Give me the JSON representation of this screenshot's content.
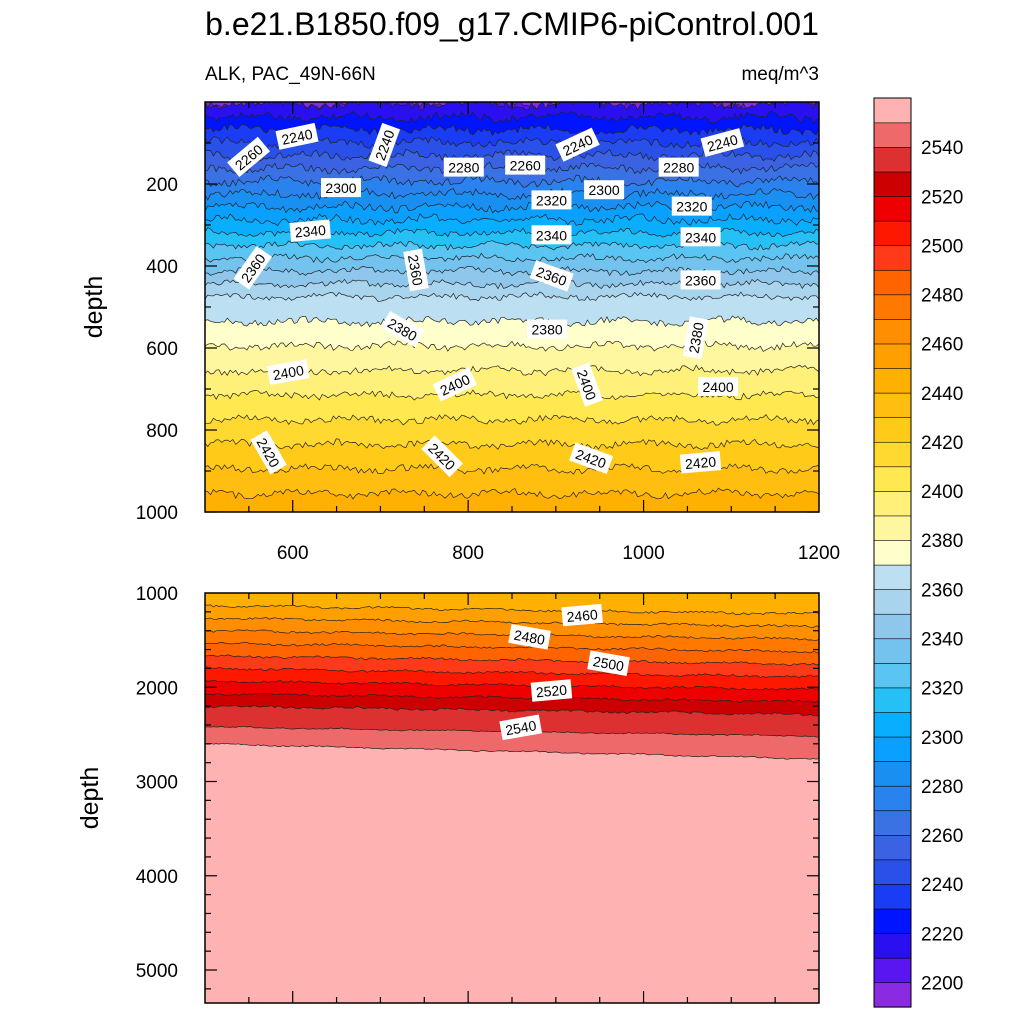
{
  "chart_data": {
    "type": "contour",
    "title": "b.e21.B1850.f09_g17.CMIP6-piControl.001",
    "subtitle_left": "ALK, PAC_49N-66N",
    "subtitle_right": "meq/m^3",
    "ylabel": "depth",
    "xlim": [
      500,
      1200
    ],
    "x_ticks": [
      "600",
      "800",
      "1000",
      "1200"
    ],
    "upper_panel": {
      "ylim": [
        0,
        1000
      ],
      "y_ticks": [
        "200",
        "400",
        "600",
        "800",
        "1000"
      ],
      "contour_labels": [
        {
          "text": "2240",
          "x": 605,
          "d": 85,
          "rot": -12
        },
        {
          "text": "2260",
          "x": 550,
          "d": 135,
          "rot": -40
        },
        {
          "text": "2240",
          "x": 705,
          "d": 105,
          "rot": -70
        },
        {
          "text": "2280",
          "x": 795,
          "d": 160,
          "rot": 0
        },
        {
          "text": "2260",
          "x": 865,
          "d": 155,
          "rot": 0
        },
        {
          "text": "2240",
          "x": 925,
          "d": 105,
          "rot": -25
        },
        {
          "text": "2280",
          "x": 1040,
          "d": 160,
          "rot": 0
        },
        {
          "text": "2240",
          "x": 1090,
          "d": 100,
          "rot": -15
        },
        {
          "text": "2300",
          "x": 655,
          "d": 210,
          "rot": 0
        },
        {
          "text": "2320",
          "x": 895,
          "d": 240,
          "rot": 0
        },
        {
          "text": "2300",
          "x": 955,
          "d": 215,
          "rot": 0
        },
        {
          "text": "2320",
          "x": 1055,
          "d": 255,
          "rot": 0
        },
        {
          "text": "2340",
          "x": 620,
          "d": 315,
          "rot": -5
        },
        {
          "text": "2340",
          "x": 895,
          "d": 325,
          "rot": 0
        },
        {
          "text": "2340",
          "x": 1065,
          "d": 330,
          "rot": 0
        },
        {
          "text": "2360",
          "x": 555,
          "d": 405,
          "rot": -55
        },
        {
          "text": "2360",
          "x": 740,
          "d": 410,
          "rot": 80
        },
        {
          "text": "2360",
          "x": 895,
          "d": 425,
          "rot": 20
        },
        {
          "text": "2360",
          "x": 1065,
          "d": 435,
          "rot": 0
        },
        {
          "text": "2380",
          "x": 725,
          "d": 555,
          "rot": 30
        },
        {
          "text": "2380",
          "x": 890,
          "d": 555,
          "rot": 0
        },
        {
          "text": "2380",
          "x": 1060,
          "d": 575,
          "rot": -80
        },
        {
          "text": "2400",
          "x": 595,
          "d": 660,
          "rot": -10
        },
        {
          "text": "2400",
          "x": 785,
          "d": 690,
          "rot": -25
        },
        {
          "text": "2400",
          "x": 935,
          "d": 690,
          "rot": 70
        },
        {
          "text": "2400",
          "x": 1085,
          "d": 695,
          "rot": 0
        },
        {
          "text": "2420",
          "x": 572,
          "d": 855,
          "rot": 60
        },
        {
          "text": "2420",
          "x": 770,
          "d": 865,
          "rot": 45
        },
        {
          "text": "2420",
          "x": 940,
          "d": 870,
          "rot": 20
        },
        {
          "text": "2420",
          "x": 1065,
          "d": 880,
          "rot": -5
        }
      ]
    },
    "lower_panel": {
      "ylim": [
        1000,
        5350
      ],
      "y_ticks": [
        "1000",
        "2000",
        "3000",
        "4000",
        "5000"
      ],
      "contour_labels": [
        {
          "text": "2460",
          "x": 930,
          "d": 1240,
          "rot": -5
        },
        {
          "text": "2480",
          "x": 870,
          "d": 1470,
          "rot": 10
        },
        {
          "text": "2500",
          "x": 960,
          "d": 1750,
          "rot": 10
        },
        {
          "text": "2520",
          "x": 895,
          "d": 2040,
          "rot": -5
        },
        {
          "text": "2540",
          "x": 860,
          "d": 2430,
          "rot": -10
        }
      ]
    },
    "levels": [
      2200,
      2210,
      2220,
      2230,
      2240,
      2250,
      2260,
      2270,
      2280,
      2290,
      2300,
      2310,
      2320,
      2330,
      2340,
      2350,
      2360,
      2370,
      2380,
      2390,
      2400,
      2410,
      2420,
      2430,
      2440,
      2450,
      2460,
      2470,
      2480,
      2490,
      2500,
      2510,
      2520,
      2530,
      2540,
      2550
    ],
    "colorbar_labels": [
      "2200",
      "2220",
      "2240",
      "2260",
      "2280",
      "2300",
      "2320",
      "2340",
      "2360",
      "2380",
      "2400",
      "2420",
      "2440",
      "2460",
      "2480",
      "2500",
      "2520",
      "2540"
    ],
    "colors": [
      "#8a2be2",
      "#5a16f0",
      "#2a10f0",
      "#0014ff",
      "#1a3cf5",
      "#2a50ea",
      "#3a62e2",
      "#3a72e6",
      "#2a82ee",
      "#1a8ff2",
      "#0aa0ff",
      "#0aaeff",
      "#24c0f6",
      "#5ac4f2",
      "#74c2ee",
      "#8ec6ec",
      "#a8d4ee",
      "#bce0f2",
      "#ffffcc",
      "#fff6a0",
      "#fff07a",
      "#ffe850",
      "#ffd830",
      "#ffca18",
      "#ffbe10",
      "#ffb000",
      "#ffa000",
      "#ff8e00",
      "#ff7800",
      "#ff6400",
      "#ff3a18",
      "#ff1800",
      "#ee0000",
      "#cc0000",
      "#dd3030",
      "#ee6a6a",
      "#ffb2b2"
    ]
  }
}
